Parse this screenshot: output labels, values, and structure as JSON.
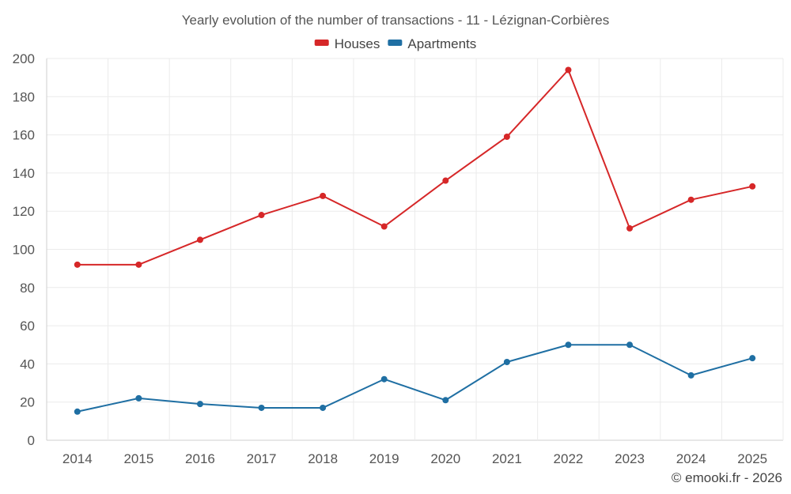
{
  "chart_data": {
    "type": "line",
    "title": "Yearly evolution of the number of transactions - 11 - Lézignan-Corbières",
    "categories": [
      "2014",
      "2015",
      "2016",
      "2017",
      "2018",
      "2019",
      "2020",
      "2021",
      "2022",
      "2023",
      "2024",
      "2025"
    ],
    "series": [
      {
        "name": "Houses",
        "color": "#d62728",
        "values": [
          92,
          92,
          105,
          118,
          128,
          112,
          136,
          159,
          194,
          111,
          126,
          133
        ]
      },
      {
        "name": "Apartments",
        "color": "#1f6fa3",
        "values": [
          15,
          22,
          19,
          17,
          17,
          32,
          21,
          41,
          50,
          50,
          34,
          43
        ]
      }
    ],
    "ylim": [
      0,
      200
    ],
    "yticks": [
      0,
      20,
      40,
      60,
      80,
      100,
      120,
      140,
      160,
      180,
      200
    ],
    "ytick_labels": [
      "0",
      "20",
      "40",
      "60",
      "80",
      "100",
      "120",
      "140",
      "160",
      "180",
      "200"
    ],
    "xlabel": "",
    "ylabel": "",
    "legend_position": "top-center",
    "grid": true
  },
  "credit": "© emooki.fr - 2026"
}
